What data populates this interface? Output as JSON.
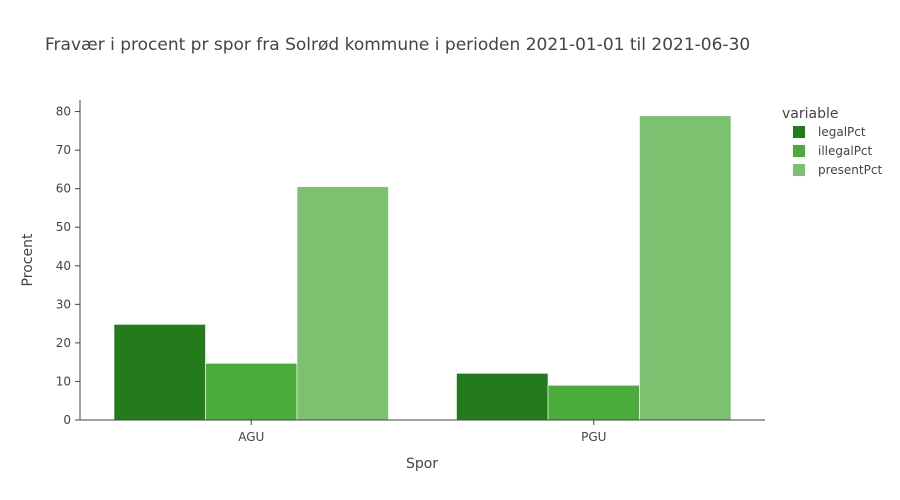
{
  "chart_data": {
    "type": "bar",
    "title": "Fravær i procent pr spor fra Solrød kommune i perioden 2021-01-01 til 2021-06-30",
    "xlabel": "Spor",
    "ylabel": "Procent",
    "categories": [
      "AGU",
      "PGU"
    ],
    "ylim": [
      0,
      83
    ],
    "yticks": [
      0,
      10,
      20,
      30,
      40,
      50,
      60,
      70,
      80
    ],
    "grid": false,
    "legend": {
      "title": "variable",
      "placement": "top-right"
    },
    "series": [
      {
        "name": "legalPct",
        "color": "#237b1b",
        "values": [
          24.8,
          12.1
        ]
      },
      {
        "name": "illegalPct",
        "color": "#4aac3b",
        "values": [
          14.7,
          9.0
        ]
      },
      {
        "name": "presentPct",
        "color": "#7cc170",
        "values": [
          60.5,
          78.9
        ]
      }
    ]
  }
}
